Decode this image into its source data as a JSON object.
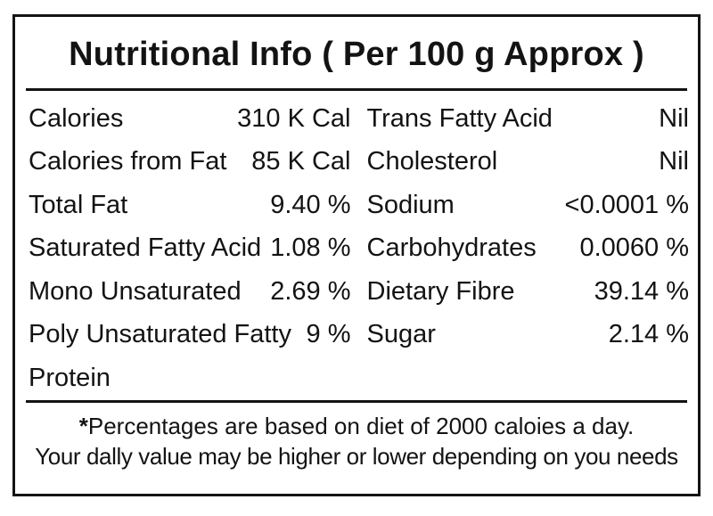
{
  "label": {
    "title": "Nutritional Info ( Per 100 g Approx )",
    "columns": {
      "left": [
        {
          "name": "Calories",
          "value": "310 K Cal"
        },
        {
          "name": "Calories from Fat",
          "value": "85 K Cal"
        },
        {
          "name": "Total Fat",
          "value": "9.40 %"
        },
        {
          "name": "Saturated Fatty Acid",
          "value": "1.08 %"
        },
        {
          "name": "Mono Unsaturated",
          "value": "2.69 %"
        },
        {
          "name": "Poly Unsaturated Fatty",
          "value": "9 %"
        },
        {
          "name": "Protein",
          "value": ""
        }
      ],
      "right": [
        {
          "name": "Trans Fatty Acid",
          "value": "Nil"
        },
        {
          "name": "Cholesterol",
          "value": "Nil"
        },
        {
          "name": "Sodium",
          "value": "<0.0001 %"
        },
        {
          "name": "Carbohydrates",
          "value": "0.0060 %"
        },
        {
          "name": "Dietary Fibre",
          "value": "39.14 %"
        },
        {
          "name": "Sugar",
          "value": "2.14 %"
        }
      ]
    },
    "footnote": {
      "asterisk": "*",
      "line1": "Percentages are based on diet of 2000 caloies a day.",
      "line2": "Your dally value may be higher or lower depending on you needs"
    },
    "colors": {
      "border": "#141414",
      "text": "#131313",
      "background": "#ffffff"
    }
  }
}
